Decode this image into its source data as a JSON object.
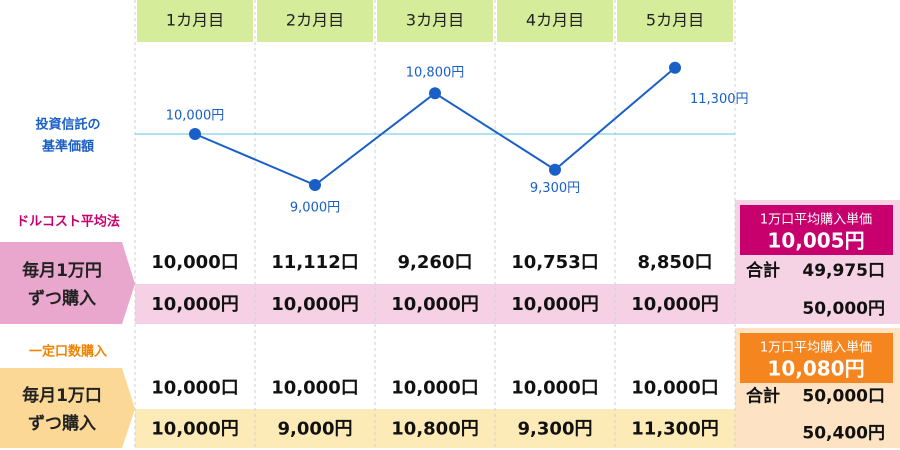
{
  "chart_data": {
    "type": "line",
    "categories": [
      "1カ月目",
      "2カ月目",
      "3カ月目",
      "4カ月目",
      "5カ月目"
    ],
    "values": [
      10000,
      9000,
      10800,
      9300,
      11300
    ],
    "value_labels": [
      "10,000円",
      "9,000円",
      "10,800円",
      "9,300円",
      "11,300円"
    ],
    "y_label": [
      "投資信託の",
      "基準価額"
    ],
    "color": "#1a5fc8",
    "ylim": [
      8500,
      11500
    ]
  },
  "tables": [
    {
      "title": "ドルコスト平均法",
      "label": [
        "毎月1万円",
        "ずつ購入"
      ],
      "units": [
        "10,000口",
        "11,112口",
        "9,260口",
        "10,753口",
        "8,850口"
      ],
      "costs": [
        "10,000円",
        "10,000円",
        "10,000円",
        "10,000円",
        "10,000円"
      ],
      "summary": {
        "heading": "1万口平均購入単価",
        "price": "10,005円",
        "total_label": "合計",
        "total_units": "49,975口",
        "total_cost": "50,000円"
      }
    },
    {
      "title": "一定口数購入",
      "label": [
        "毎月1万口",
        "ずつ購入"
      ],
      "units": [
        "10,000口",
        "10,000口",
        "10,000口",
        "10,000口",
        "10,000口"
      ],
      "costs": [
        "10,000円",
        "9,000円",
        "10,800円",
        "9,300円",
        "11,300円"
      ],
      "summary": {
        "heading": "1万口平均購入単価",
        "price": "10,080円",
        "total_label": "合計",
        "total_units": "50,000口",
        "total_cost": "50,400円"
      }
    }
  ]
}
